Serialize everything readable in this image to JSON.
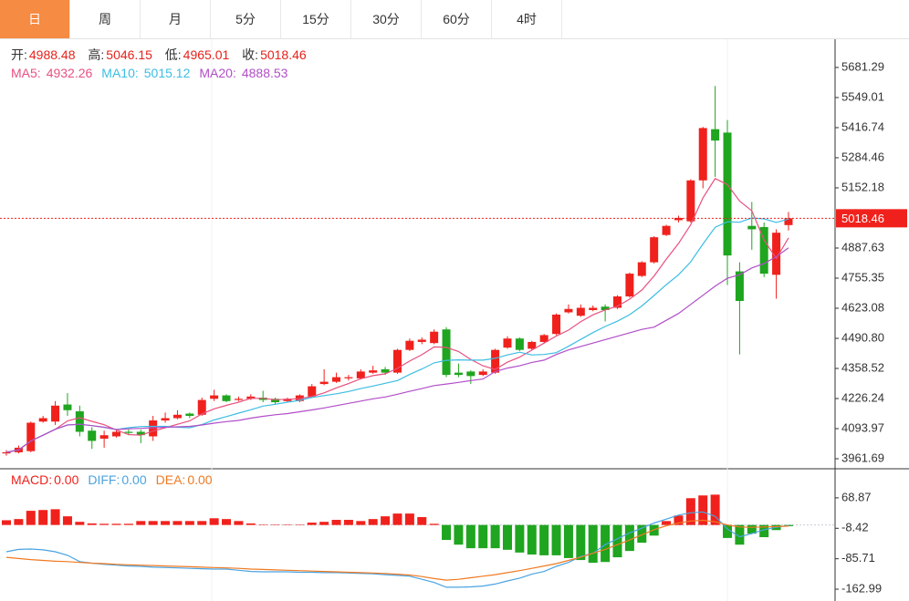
{
  "tabs": [
    "日",
    "周",
    "月",
    "5分",
    "15分",
    "30分",
    "60分",
    "4时"
  ],
  "chart_data": [
    {
      "type": "candlestick",
      "labels": {
        "open": "开:",
        "high": "高:",
        "low": "低:",
        "close": "收:"
      },
      "up_color": "#f0211c",
      "down_color": "#1fa51f",
      "ylim": [
        3921.6,
        5805.4
      ],
      "yticks": [
        5681.29,
        5549.01,
        5416.74,
        5284.46,
        5152.18,
        4887.63,
        4755.35,
        4623.08,
        {
          "value": 4490.8,
          "label": "4490.80"
        },
        4358.52,
        4226.24,
        4093.97,
        3961.69
      ],
      "open": [
        3985,
        3990,
        3995,
        4125,
        4125,
        4200,
        4170,
        4085,
        4050,
        4060,
        4080,
        4080,
        4060,
        4130,
        4140,
        4160,
        4155,
        4225,
        4240,
        4220,
        4225,
        4230,
        4225,
        4215,
        4215,
        4235,
        4290,
        4300,
        4315,
        4315,
        4340,
        4355,
        4340,
        4440,
        4475,
        4470,
        4530,
        4340,
        4345,
        4330,
        4340,
        4450,
        4490,
        4445,
        4475,
        4510,
        4605,
        4590,
        4615,
        4630,
        4625,
        4675,
        4765,
        4825,
        4945,
        5010,
        5005,
        5185,
        5410,
        5395,
        4785,
        4985,
        4980,
        4770,
        4988.48
      ],
      "high": [
        4000,
        4020,
        4125,
        4150,
        4215,
        4250,
        4195,
        4100,
        4085,
        4090,
        4090,
        4090,
        4150,
        4165,
        4175,
        4165,
        4230,
        4265,
        4245,
        4235,
        4245,
        4260,
        4230,
        4230,
        4245,
        4290,
        4355,
        4340,
        4330,
        4355,
        4370,
        4365,
        4445,
        4490,
        4495,
        4530,
        4540,
        4380,
        4350,
        4355,
        4445,
        4500,
        4495,
        4480,
        4510,
        4600,
        4640,
        4640,
        4635,
        4640,
        4680,
        4780,
        4830,
        4940,
        4990,
        5030,
        5190,
        5420,
        5600,
        5450,
        4825,
        5090,
        5000,
        4970,
        5046.15
      ],
      "low": [
        3975,
        3985,
        3990,
        4120,
        4110,
        4150,
        4060,
        4005,
        4010,
        4055,
        4065,
        4030,
        4040,
        4120,
        4135,
        4140,
        4150,
        4215,
        4210,
        4215,
        4220,
        4210,
        4200,
        4210,
        4210,
        4230,
        4285,
        4295,
        4305,
        4310,
        4335,
        4330,
        4335,
        4435,
        4465,
        4465,
        4320,
        4320,
        4290,
        4325,
        4335,
        4445,
        4435,
        4440,
        4470,
        4505,
        4600,
        4585,
        4610,
        4565,
        4620,
        4670,
        4760,
        4820,
        4940,
        5000,
        5000,
        5150,
        5200,
        4725,
        4420,
        4880,
        4760,
        4665,
        4965.01
      ],
      "close": [
        3990,
        4010,
        4120,
        4140,
        4195,
        4175,
        4080,
        4040,
        4065,
        4080,
        4075,
        4065,
        4130,
        4140,
        4155,
        4150,
        4220,
        4240,
        4215,
        4225,
        4235,
        4220,
        4210,
        4225,
        4240,
        4280,
        4300,
        4320,
        4320,
        4345,
        4350,
        4340,
        4440,
        4480,
        4485,
        4520,
        4330,
        4330,
        4325,
        4345,
        4440,
        4490,
        4440,
        4475,
        4505,
        4595,
        4620,
        4625,
        4625,
        4615,
        4675,
        4775,
        4825,
        4935,
        4985,
        5020,
        5185,
        5415,
        5360,
        4855,
        4655,
        4970,
        4775,
        4955,
        5018.46
      ],
      "series": [
        {
          "name": "MA5:",
          "color": "#e9507e",
          "values": [
            3990,
            4000,
            4040,
            4065,
            4091,
            4128,
            4142,
            4126,
            4111,
            4088,
            4068,
            4065,
            4083,
            4098,
            4113,
            4128,
            4159,
            4181,
            4196,
            4210,
            4227,
            4227,
            4221,
            4223,
            4226,
            4235,
            4251,
            4273,
            4292,
            4313,
            4327,
            4335,
            4359,
            4391,
            4419,
            4453,
            4451,
            4433,
            4398,
            4370,
            4354,
            4386,
            4408,
            4439,
            4470,
            4501,
            4527,
            4564,
            4594,
            4616,
            4632,
            4663,
            4703,
            4765,
            4839,
            4908,
            4990,
            5108,
            5193,
            5167,
            5094,
            5051,
            4923,
            4842,
            4932.26
          ]
        },
        {
          "name": "MA10:",
          "color": "#3cbde2",
          "values": [
            3990,
            4000,
            4040,
            4065,
            4091,
            4110,
            4113,
            4107,
            4100,
            4090,
            4098,
            4103,
            4104,
            4104,
            4100,
            4098,
            4112,
            4132,
            4147,
            4162,
            4177,
            4193,
            4201,
            4210,
            4218,
            4231,
            4239,
            4247,
            4257,
            4270,
            4281,
            4293,
            4305,
            4332,
            4356,
            4383,
            4394,
            4396,
            4395,
            4395,
            4403,
            4418,
            4430,
            4418,
            4420,
            4428,
            4456,
            4486,
            4516,
            4543,
            4566,
            4595,
            4633,
            4679,
            4727,
            4770,
            4827,
            4905,
            4979,
            5003,
            5001,
            5020,
            5016,
            5000,
            5015.12
          ]
        },
        {
          "name": "MA20:",
          "color": "#b24ec8",
          "values": [
            3990,
            4000,
            4040,
            4065,
            4091,
            4110,
            4113,
            4107,
            4100,
            4090,
            4093,
            4095,
            4098,
            4100,
            4102,
            4104,
            4110,
            4118,
            4125,
            4130,
            4140,
            4148,
            4155,
            4160,
            4168,
            4176,
            4185,
            4195,
            4205,
            4215,
            4225,
            4233,
            4245,
            4258,
            4270,
            4283,
            4290,
            4297,
            4305,
            4312,
            4345,
            4360,
            4370,
            4385,
            4395,
            4420,
            4440,
            4455,
            4470,
            4485,
            4500,
            4515,
            4530,
            4540,
            4570,
            4600,
            4640,
            4680,
            4720,
            4755,
            4770,
            4800,
            4820,
            4850,
            4888.53
          ]
        }
      ]
    },
    {
      "type": "macd",
      "ylim": [
        -193,
        140.4
      ],
      "yticks": [
        68.87,
        -8.42,
        -85.71,
        -162.99
      ],
      "up_color": "#f0211c",
      "down_color": "#1fa51f",
      "legend_values": [
        {
          "value": 0,
          "label": "0.00"
        },
        {
          "value": 0,
          "label": "0.00"
        },
        {
          "value": 0,
          "label": "0.00"
        }
      ],
      "series": [
        {
          "name": "MACD:",
          "color": "#f0211c",
          "values": [
            12,
            15,
            36,
            38,
            40,
            22,
            8,
            4,
            3,
            3,
            3,
            10,
            10,
            10,
            10,
            10,
            10,
            17,
            15,
            10,
            4,
            1,
            1,
            1,
            1,
            6,
            8,
            13,
            13,
            10,
            15,
            22,
            29,
            29,
            20,
            3,
            -38,
            -50,
            -59,
            -59,
            -59,
            -63,
            -70,
            -75,
            -77,
            -77,
            -84,
            -89,
            -96,
            -94,
            -82,
            -66,
            -45,
            -27,
            10,
            24,
            68,
            75,
            77,
            -33,
            -50,
            -22,
            -31,
            -13,
            -3
          ]
        },
        {
          "name": "DIFF:",
          "color": "#4aa3e0",
          "values": [
            -68,
            -62,
            -61,
            -63,
            -68,
            -77,
            -93,
            -97,
            -100,
            -102,
            -104,
            -105,
            -107,
            -108,
            -109,
            -110,
            -111,
            -112,
            -112,
            -115,
            -118,
            -119,
            -119,
            -119,
            -120,
            -120,
            -121,
            -121,
            -122,
            -123,
            -124,
            -126,
            -128,
            -130,
            -138,
            -146,
            -158,
            -158,
            -157,
            -155,
            -150,
            -142,
            -135,
            -125,
            -118,
            -105,
            -95,
            -80,
            -72,
            -50,
            -35,
            -20,
            -8,
            5,
            15,
            25,
            31,
            33,
            22,
            -10,
            -30,
            -22,
            -12,
            -6,
            -1
          ]
        },
        {
          "name": "DEA:",
          "color": "#f07a22",
          "values": [
            -82,
            -85,
            -88,
            -90,
            -92,
            -93,
            -95,
            -97,
            -98,
            -100,
            -101,
            -102,
            -103,
            -104,
            -105,
            -106,
            -107,
            -108,
            -109,
            -110,
            -112,
            -113,
            -114,
            -115,
            -116,
            -117,
            -118,
            -119,
            -120,
            -121,
            -122,
            -123,
            -125,
            -127,
            -131,
            -136,
            -140,
            -138,
            -134,
            -130,
            -126,
            -121,
            -116,
            -110,
            -104,
            -98,
            -90,
            -82,
            -72,
            -62,
            -50,
            -38,
            -25,
            -12,
            -2,
            5,
            10,
            12,
            8,
            0,
            -5,
            -6,
            -5,
            -4,
            -3
          ]
        }
      ]
    }
  ]
}
